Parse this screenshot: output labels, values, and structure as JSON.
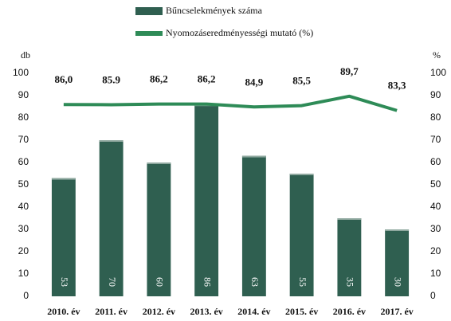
{
  "chart_data": {
    "type": "bar",
    "categories": [
      "2010. év",
      "2011. év",
      "2012. év",
      "2013. év",
      "2014. év",
      "2015. év",
      "2016. év",
      "2017. év"
    ],
    "series": [
      {
        "name": "Bűncselekmények száma",
        "type": "bar",
        "color": "#2f5f50",
        "values": [
          53,
          70,
          60,
          86,
          63,
          55,
          35,
          30
        ]
      },
      {
        "name": "Nyomozáseredményességi mutató (%)",
        "type": "line",
        "axis": "y2",
        "color": "#2e8b57",
        "values": [
          86.0,
          85.9,
          86.2,
          86.2,
          84.9,
          85.5,
          89.7,
          83.3
        ],
        "value_labels": [
          "86,0",
          "85.9",
          "86,2",
          "86,2",
          "84,9",
          "85,5",
          "89,7",
          "83,3"
        ]
      }
    ],
    "ylabel": "db",
    "y2label": "%",
    "ylim": [
      0,
      100
    ],
    "yticks": [
      0,
      10,
      20,
      30,
      40,
      50,
      60,
      70,
      80,
      90,
      100
    ],
    "y2lim": [
      0,
      100
    ],
    "y2ticks": [
      0,
      10,
      20,
      30,
      40,
      50,
      60,
      70,
      80,
      90,
      100
    ]
  }
}
